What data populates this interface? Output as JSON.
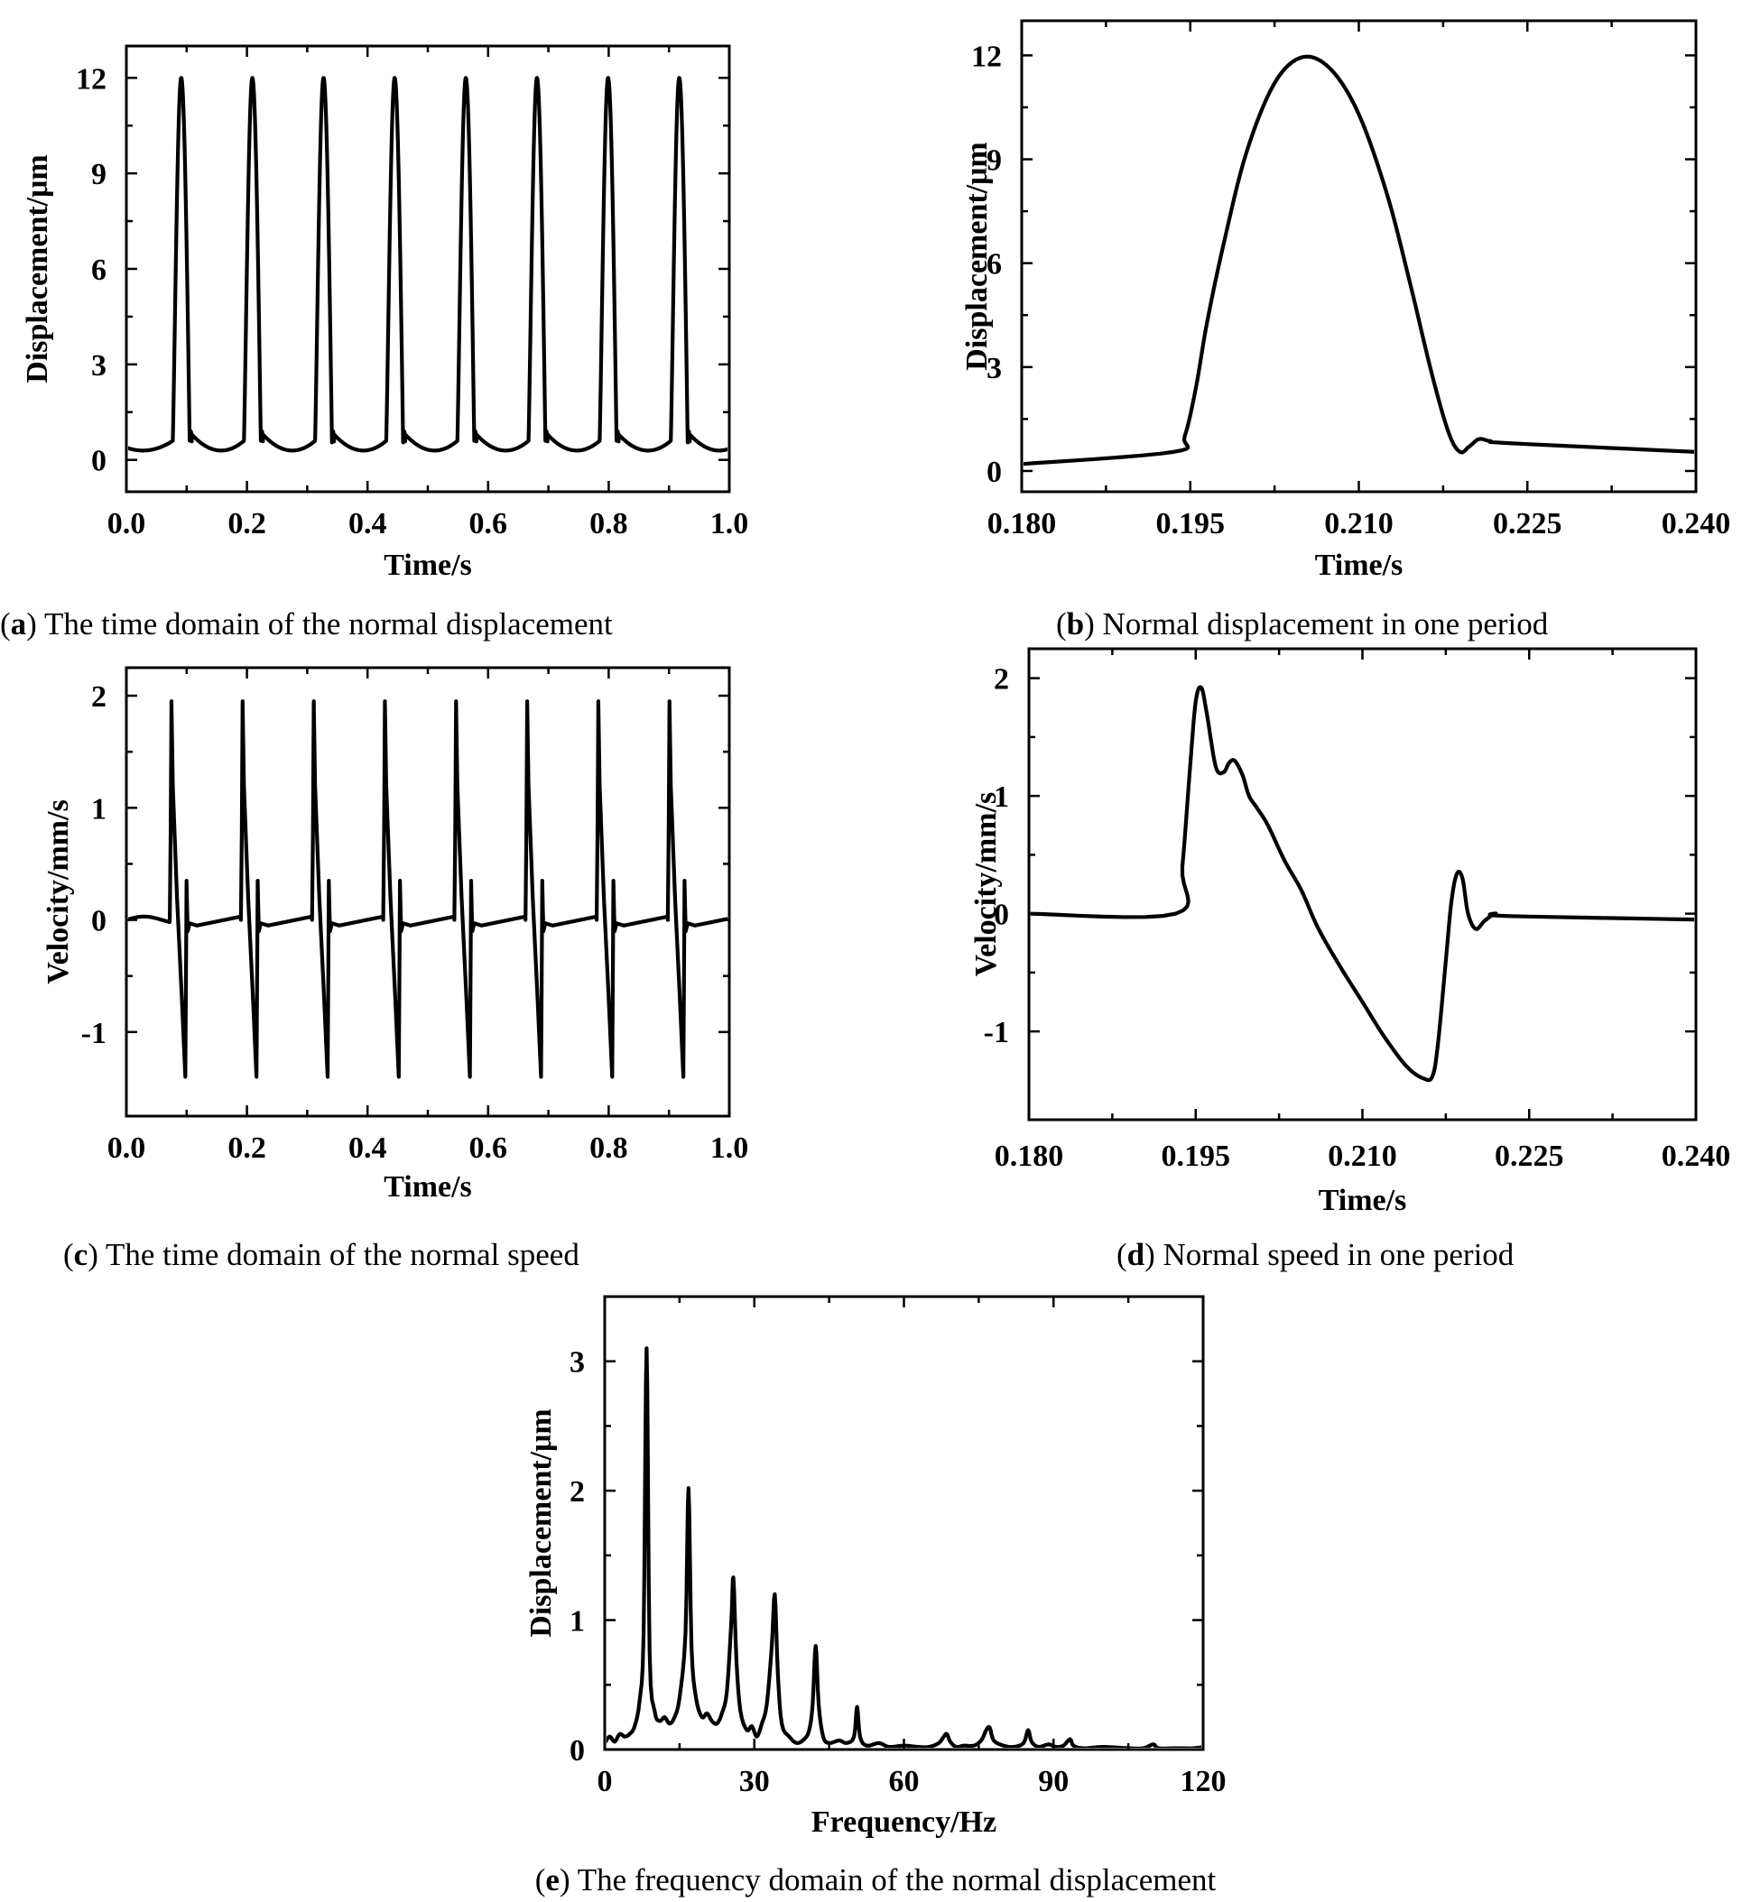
{
  "chart_data": [
    {
      "id": "a",
      "type": "line",
      "caption_letter": "a",
      "caption_text": "The time domain of the normal displacement",
      "xlabel": "Time/s",
      "ylabel": "Displacement/μm",
      "xlim": [
        0.0,
        1.0
      ],
      "ylim": [
        -1.0,
        13.0
      ],
      "xticks": [
        0.0,
        0.2,
        0.4,
        0.6,
        0.8,
        1.0
      ],
      "xtick_labels": [
        "0.0",
        "0.2",
        "0.4",
        "0.6",
        "0.8",
        "1.0"
      ],
      "yticks": [
        0,
        3,
        6,
        9,
        12
      ],
      "ytick_labels": [
        "0",
        "3",
        "6",
        "9",
        "12"
      ],
      "model": "displacement_train",
      "period": 0.118,
      "pulse_starts": [
        0.077,
        0.195,
        0.313,
        0.431,
        0.549,
        0.667,
        0.785,
        0.903
      ],
      "peak_value": 12.0,
      "baseline_min": 0.0,
      "baseline_max": 0.8
    },
    {
      "id": "b",
      "type": "line",
      "caption_letter": "b",
      "caption_text": "Normal displacement in one period",
      "xlabel": "Time/s",
      "ylabel": "Displacement/μm",
      "xlim": [
        0.18,
        0.24
      ],
      "ylim": [
        -0.6,
        13.0
      ],
      "xticks": [
        0.18,
        0.195,
        0.21,
        0.225,
        0.24
      ],
      "xtick_labels": [
        "0.180",
        "0.195",
        "0.210",
        "0.225",
        "0.240"
      ],
      "yticks": [
        0,
        3,
        6,
        9,
        12
      ],
      "ytick_labels": [
        "0",
        "3",
        "6",
        "9",
        "12"
      ],
      "points": [
        [
          0.18,
          0.2
        ],
        [
          0.1935,
          0.55
        ],
        [
          0.1945,
          1.0
        ],
        [
          0.1955,
          2.4
        ],
        [
          0.1965,
          4.3
        ],
        [
          0.198,
          6.6
        ],
        [
          0.2,
          9.2
        ],
        [
          0.2025,
          11.2
        ],
        [
          0.205,
          11.95
        ],
        [
          0.2075,
          11.6
        ],
        [
          0.21,
          10.3
        ],
        [
          0.2125,
          8.0
        ],
        [
          0.2145,
          5.5
        ],
        [
          0.2165,
          2.8
        ],
        [
          0.218,
          1.1
        ],
        [
          0.219,
          0.55
        ],
        [
          0.2198,
          0.7
        ],
        [
          0.2207,
          0.92
        ],
        [
          0.2217,
          0.86
        ],
        [
          0.2235,
          0.8
        ],
        [
          0.24,
          0.55
        ]
      ]
    },
    {
      "id": "c",
      "type": "line",
      "caption_letter": "c",
      "caption_text": "The time domain of the normal speed",
      "xlabel": "Time/s",
      "ylabel": "Velocity/mm/s",
      "xlim": [
        0.0,
        1.0
      ],
      "ylim": [
        -1.75,
        2.25
      ],
      "xticks": [
        0.0,
        0.2,
        0.4,
        0.6,
        0.8,
        1.0
      ],
      "xtick_labels": [
        "0.0",
        "0.2",
        "0.4",
        "0.6",
        "0.8",
        "1.0"
      ],
      "yticks": [
        -1,
        0,
        1,
        2
      ],
      "ytick_labels": [
        "-1",
        "0",
        "1",
        "2"
      ],
      "model": "velocity_train",
      "period": 0.118,
      "pulse_starts": [
        0.072,
        0.19,
        0.308,
        0.426,
        0.544,
        0.662,
        0.78,
        0.898
      ],
      "peak_value": 1.95,
      "trough_value": -1.4
    },
    {
      "id": "d",
      "type": "line",
      "caption_letter": "d",
      "caption_text": "Normal speed in one period",
      "xlabel": "Time/s",
      "ylabel": "Velocity/mm/s",
      "xlim": [
        0.18,
        0.24
      ],
      "ylim": [
        -1.75,
        2.25
      ],
      "xticks": [
        0.18,
        0.195,
        0.21,
        0.225,
        0.24
      ],
      "xtick_labels": [
        "0.180",
        "0.195",
        "0.210",
        "0.225",
        "0.240"
      ],
      "yticks": [
        -1,
        0,
        1,
        2
      ],
      "ytick_labels": [
        "-1",
        "0",
        "1",
        "2"
      ],
      "points": [
        [
          0.18,
          0.0
        ],
        [
          0.1932,
          0.0
        ],
        [
          0.1938,
          0.4
        ],
        [
          0.1945,
          1.25
        ],
        [
          0.195,
          1.8
        ],
        [
          0.1955,
          1.92
        ],
        [
          0.196,
          1.7
        ],
        [
          0.1968,
          1.25
        ],
        [
          0.1975,
          1.2
        ],
        [
          0.198,
          1.28
        ],
        [
          0.1985,
          1.3
        ],
        [
          0.1992,
          1.18
        ],
        [
          0.1998,
          1.0
        ],
        [
          0.2005,
          0.9
        ],
        [
          0.2015,
          0.75
        ],
        [
          0.203,
          0.45
        ],
        [
          0.2045,
          0.2
        ],
        [
          0.206,
          -0.12
        ],
        [
          0.208,
          -0.45
        ],
        [
          0.21,
          -0.75
        ],
        [
          0.212,
          -1.05
        ],
        [
          0.214,
          -1.3
        ],
        [
          0.2155,
          -1.4
        ],
        [
          0.2163,
          -1.38
        ],
        [
          0.2168,
          -1.1
        ],
        [
          0.2175,
          -0.4
        ],
        [
          0.218,
          0.1
        ],
        [
          0.2185,
          0.34
        ],
        [
          0.219,
          0.3
        ],
        [
          0.2195,
          0.0
        ],
        [
          0.2202,
          -0.13
        ],
        [
          0.221,
          -0.06
        ],
        [
          0.222,
          0.0
        ],
        [
          0.223,
          -0.02
        ],
        [
          0.24,
          -0.05
        ]
      ]
    },
    {
      "id": "e",
      "type": "line",
      "caption_letter": "e",
      "caption_text": "The frequency domain of the normal displacement",
      "xlabel": "Frequency/Hz",
      "ylabel": "Displacement/μm",
      "xlim": [
        0,
        120
      ],
      "ylim": [
        0,
        3.5
      ],
      "xticks": [
        0,
        30,
        60,
        90,
        120
      ],
      "xtick_labels": [
        "0",
        "30",
        "60",
        "90",
        "120"
      ],
      "yticks": [
        0,
        1,
        2,
        3
      ],
      "ytick_labels": [
        "0",
        "1",
        "2",
        "3"
      ],
      "points": [
        [
          0,
          0.05
        ],
        [
          1,
          0.1
        ],
        [
          2,
          0.06
        ],
        [
          3,
          0.12
        ],
        [
          4,
          0.1
        ],
        [
          5,
          0.12
        ],
        [
          6,
          0.18
        ],
        [
          7,
          0.38
        ],
        [
          7.8,
          0.9
        ],
        [
          8.4,
          3.1
        ],
        [
          9,
          0.75
        ],
        [
          10,
          0.3
        ],
        [
          11,
          0.22
        ],
        [
          12,
          0.25
        ],
        [
          13,
          0.2
        ],
        [
          14,
          0.25
        ],
        [
          15,
          0.4
        ],
        [
          16.2,
          0.9
        ],
        [
          16.8,
          2.02
        ],
        [
          17.4,
          0.8
        ],
        [
          18.3,
          0.4
        ],
        [
          19.5,
          0.25
        ],
        [
          20.5,
          0.28
        ],
        [
          21.5,
          0.22
        ],
        [
          22.5,
          0.2
        ],
        [
          23.5,
          0.28
        ],
        [
          24.5,
          0.45
        ],
        [
          25.4,
          1.0
        ],
        [
          25.8,
          1.33
        ],
        [
          26.4,
          0.7
        ],
        [
          27.2,
          0.3
        ],
        [
          28.5,
          0.15
        ],
        [
          29.5,
          0.18
        ],
        [
          30.5,
          0.1
        ],
        [
          31.5,
          0.2
        ],
        [
          32.5,
          0.35
        ],
        [
          33.5,
          0.8
        ],
        [
          34.1,
          1.2
        ],
        [
          34.7,
          0.6
        ],
        [
          35.5,
          0.2
        ],
        [
          37,
          0.1
        ],
        [
          38.5,
          0.05
        ],
        [
          40,
          0.08
        ],
        [
          41,
          0.15
        ],
        [
          41.7,
          0.35
        ],
        [
          42.3,
          0.8
        ],
        [
          42.9,
          0.35
        ],
        [
          43.8,
          0.1
        ],
        [
          45,
          0.05
        ],
        [
          47,
          0.07
        ],
        [
          48.5,
          0.05
        ],
        [
          50,
          0.1
        ],
        [
          50.6,
          0.33
        ],
        [
          51.2,
          0.1
        ],
        [
          52.5,
          0.03
        ],
        [
          55,
          0.05
        ],
        [
          57,
          0.02
        ],
        [
          60,
          0.03
        ],
        [
          63,
          0.02
        ],
        [
          65,
          0.02
        ],
        [
          67,
          0.05
        ],
        [
          68,
          0.1
        ],
        [
          68.6,
          0.12
        ],
        [
          69.3,
          0.06
        ],
        [
          70.5,
          0.02
        ],
        [
          72,
          0.03
        ],
        [
          74,
          0.03
        ],
        [
          75.5,
          0.07
        ],
        [
          76.5,
          0.15
        ],
        [
          77.2,
          0.17
        ],
        [
          78,
          0.07
        ],
        [
          80,
          0.03
        ],
        [
          82,
          0.02
        ],
        [
          84,
          0.05
        ],
        [
          84.9,
          0.15
        ],
        [
          85.6,
          0.06
        ],
        [
          87,
          0.02
        ],
        [
          89,
          0.04
        ],
        [
          90.5,
          0.02
        ],
        [
          92,
          0.03
        ],
        [
          93.3,
          0.08
        ],
        [
          94,
          0.03
        ],
        [
          96,
          0.01
        ],
        [
          100,
          0.02
        ],
        [
          105,
          0.01
        ],
        [
          108,
          0.01
        ],
        [
          110,
          0.04
        ],
        [
          111,
          0.01
        ],
        [
          114,
          0.01
        ],
        [
          118,
          0.01
        ],
        [
          120,
          0.02
        ]
      ]
    }
  ]
}
